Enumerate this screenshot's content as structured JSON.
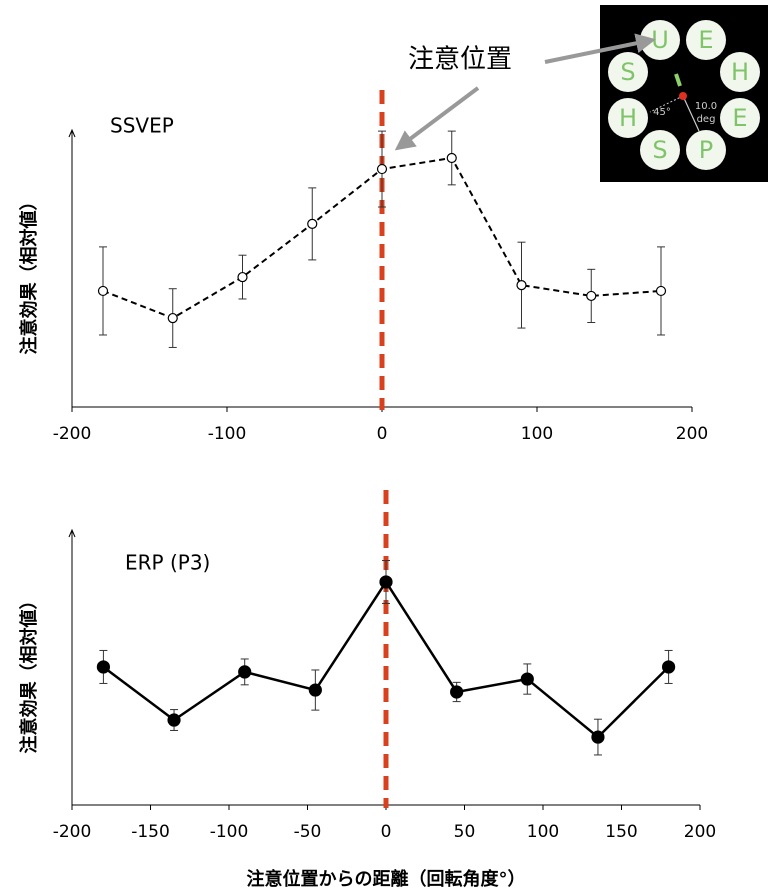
{
  "chart_data": [
    {
      "type": "line",
      "title": "SSVEP",
      "y_label": "注意効果（相対値）",
      "x": [
        -180,
        -135,
        -90,
        -45,
        0,
        45,
        90,
        135,
        180
      ],
      "values": [
        41.9,
        32.1,
        46.9,
        66.1,
        85.9,
        89.9,
        44.0,
        40.1,
        41.9
      ],
      "errors": [
        15.9,
        10.6,
        7.9,
        13.0,
        13.7,
        9.7,
        15.5,
        9.6,
        15.9
      ],
      "color": "#000000",
      "line_style": "dashed",
      "marker": "open",
      "xlim": [
        -200,
        200
      ],
      "xticks": [
        -200,
        -100,
        0,
        100,
        200
      ],
      "ylim": [
        0,
        100
      ],
      "vline": 0,
      "vline_color": "#d9411e"
    },
    {
      "type": "line",
      "title": "ERP (P3)",
      "y_label": "注意効果（相対値）",
      "x_label": "注意位置からの距離（回転角度°）",
      "x": [
        -180,
        -135,
        -90,
        -45,
        0,
        45,
        90,
        135,
        180
      ],
      "values": [
        50.2,
        30.9,
        48.4,
        41.8,
        81.1,
        41.1,
        45.8,
        24.7,
        50.2
      ],
      "errors": [
        6.0,
        3.8,
        4.7,
        7.3,
        7.8,
        3.5,
        5.5,
        6.5,
        6.0
      ],
      "color": "#000000",
      "line_style": "solid",
      "marker": "filled",
      "xlim": [
        -200,
        200
      ],
      "xticks": [
        -200,
        -150,
        -100,
        -50,
        0,
        50,
        100,
        150,
        200
      ],
      "ylim": [
        0,
        100
      ],
      "vline": 0,
      "vline_color": "#d9411e"
    }
  ],
  "annotation": "注意位置",
  "inset": {
    "letters": [
      "U",
      "E",
      "S",
      "H",
      "H",
      "E",
      "S",
      "P"
    ],
    "angle_label": "45°",
    "distance_value": "10.0",
    "distance_unit": "deg"
  }
}
